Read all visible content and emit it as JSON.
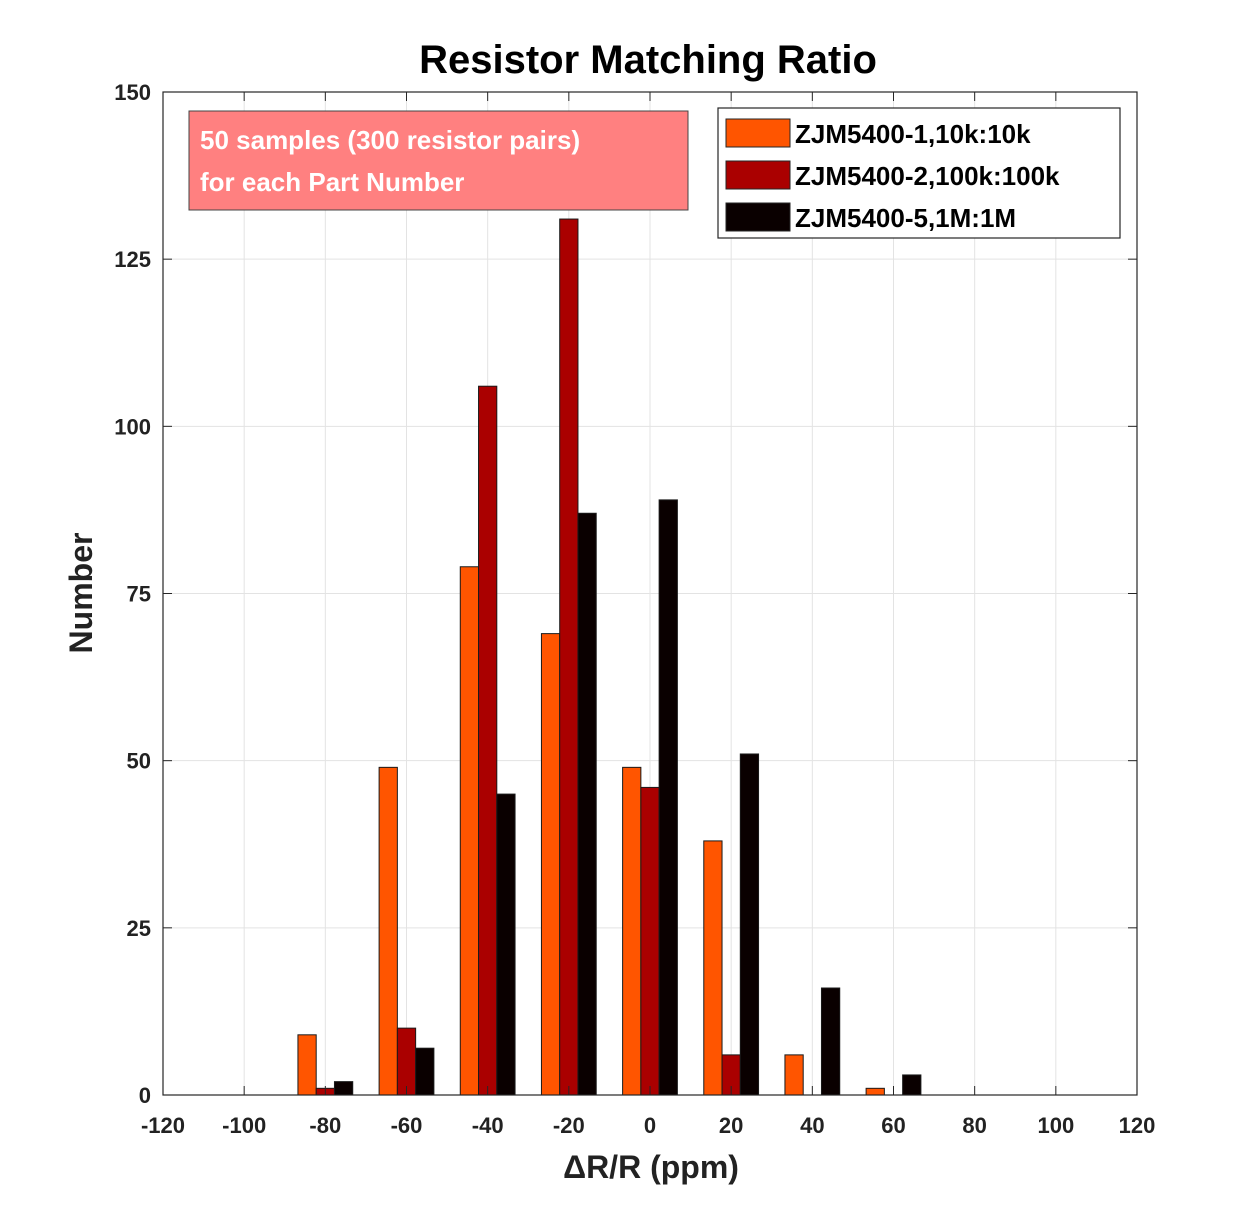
{
  "chart_data": {
    "type": "bar",
    "title": "Resistor Matching Ratio",
    "xlabel": "ΔR/R (ppm)",
    "ylabel": "Number",
    "xlim": [
      -120,
      120
    ],
    "ylim": [
      0,
      150
    ],
    "xticks": [
      -120,
      -100,
      -80,
      -60,
      -40,
      -20,
      0,
      20,
      40,
      60,
      80,
      100,
      120
    ],
    "yticks": [
      0,
      25,
      50,
      75,
      100,
      125,
      150
    ],
    "grid": true,
    "legend_position": "top-right",
    "bin_centers": [
      -100,
      -80,
      -60,
      -40,
      -20,
      0,
      20,
      40,
      60,
      80,
      100
    ],
    "bar_width_ppm": 4.5,
    "series": [
      {
        "name": "ZJM5400-1,10k:10k",
        "color": "#ff5500",
        "offset": -4.5,
        "values": [
          0,
          9,
          49,
          79,
          69,
          49,
          38,
          6,
          1,
          0,
          0
        ]
      },
      {
        "name": "ZJM5400-2,100k:100k",
        "color": "#aa0000",
        "offset": 0,
        "values": [
          0,
          1,
          10,
          106,
          131,
          46,
          6,
          0,
          0,
          0,
          0
        ]
      },
      {
        "name": "ZJM5400-5,1M:1M",
        "color": "#0a0000",
        "offset": 4.5,
        "values": [
          0,
          2,
          7,
          45,
          87,
          89,
          51,
          16,
          3,
          0,
          0
        ]
      }
    ],
    "annotation": {
      "lines": [
        "50 samples (300 resistor pairs)",
        "for each Part Number"
      ],
      "color": "#ff8080"
    }
  }
}
